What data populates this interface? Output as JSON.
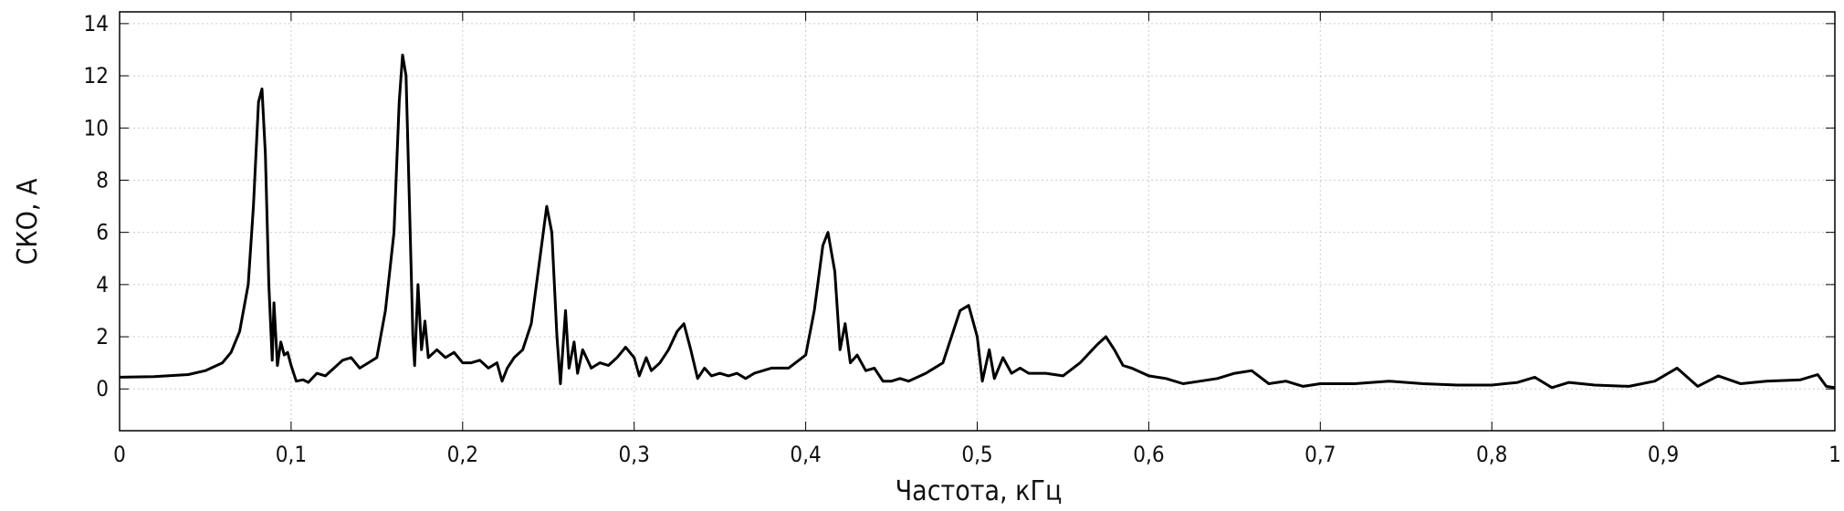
{
  "chart_data": {
    "type": "line",
    "xlabel": "Частота, кГц",
    "ylabel": "СКО, А",
    "xlim": [
      0,
      1
    ],
    "ylim": [
      -1.6,
      14.45
    ],
    "xticks": [
      0,
      {
        "value": 0.1,
        "label": "0,1"
      },
      {
        "value": 0.2,
        "label": "0,2"
      },
      {
        "value": 0.3,
        "label": "0,3"
      },
      {
        "value": 0.4,
        "label": "0,4"
      },
      {
        "value": 0.5,
        "label": "0,5"
      },
      {
        "value": 0.6,
        "label": "0,6"
      },
      {
        "value": 0.7,
        "label": "0,7"
      },
      {
        "value": 0.8,
        "label": "0,8"
      },
      {
        "value": 0.9,
        "label": "0,9"
      },
      1
    ],
    "yticks": [
      0,
      2,
      4,
      6,
      8,
      10,
      12,
      14
    ],
    "grid": true,
    "series": [
      {
        "color": "#000000",
        "x": [
          0,
          0.02,
          0.04,
          0.05,
          0.06,
          0.065,
          0.07,
          0.075,
          0.078,
          0.081,
          0.083,
          0.085,
          0.087,
          0.089,
          0.09,
          0.092,
          0.094,
          0.096,
          0.098,
          0.1,
          0.103,
          0.107,
          0.11,
          0.115,
          0.12,
          0.125,
          0.13,
          0.135,
          0.14,
          0.145,
          0.15,
          0.155,
          0.16,
          0.163,
          0.165,
          0.167,
          0.169,
          0.171,
          0.172,
          0.174,
          0.176,
          0.178,
          0.18,
          0.185,
          0.19,
          0.195,
          0.2,
          0.205,
          0.21,
          0.215,
          0.22,
          0.223,
          0.226,
          0.23,
          0.235,
          0.24,
          0.245,
          0.249,
          0.252,
          0.255,
          0.257,
          0.26,
          0.262,
          0.265,
          0.267,
          0.27,
          0.275,
          0.28,
          0.285,
          0.29,
          0.295,
          0.3,
          0.303,
          0.307,
          0.31,
          0.315,
          0.32,
          0.325,
          0.329,
          0.333,
          0.337,
          0.341,
          0.345,
          0.35,
          0.355,
          0.36,
          0.365,
          0.37,
          0.38,
          0.39,
          0.4,
          0.405,
          0.41,
          0.413,
          0.417,
          0.42,
          0.423,
          0.426,
          0.43,
          0.435,
          0.44,
          0.445,
          0.45,
          0.455,
          0.46,
          0.47,
          0.48,
          0.485,
          0.49,
          0.495,
          0.5,
          0.503,
          0.507,
          0.51,
          0.515,
          0.52,
          0.525,
          0.53,
          0.54,
          0.55,
          0.56,
          0.57,
          0.575,
          0.58,
          0.585,
          0.59,
          0.6,
          0.61,
          0.62,
          0.63,
          0.64,
          0.65,
          0.66,
          0.67,
          0.68,
          0.69,
          0.7,
          0.72,
          0.74,
          0.76,
          0.78,
          0.8,
          0.815,
          0.825,
          0.835,
          0.845,
          0.86,
          0.88,
          0.895,
          0.908,
          0.92,
          0.932,
          0.945,
          0.96,
          0.98,
          0.99,
          0.995,
          1
        ],
        "values": [
          0.45,
          0.47,
          0.55,
          0.7,
          1.0,
          1.4,
          2.2,
          4.0,
          7,
          11.0,
          11.5,
          9,
          4,
          1.1,
          3.3,
          0.9,
          1.8,
          1.3,
          1.4,
          0.9,
          0.3,
          0.35,
          0.25,
          0.6,
          0.5,
          0.8,
          1.1,
          1.2,
          0.8,
          1.0,
          1.2,
          3.0,
          6,
          11,
          12.8,
          12,
          7,
          2,
          0.9,
          4.0,
          1.5,
          2.6,
          1.2,
          1.5,
          1.2,
          1.4,
          1.0,
          1.0,
          1.1,
          0.8,
          1.0,
          0.3,
          0.8,
          1.2,
          1.5,
          2.5,
          5,
          7.0,
          6.0,
          2,
          0.2,
          3.0,
          0.8,
          1.8,
          0.6,
          1.5,
          0.8,
          1.0,
          0.9,
          1.2,
          1.6,
          1.2,
          0.5,
          1.2,
          0.7,
          1.0,
          1.5,
          2.2,
          2.5,
          1.5,
          0.4,
          0.8,
          0.5,
          0.6,
          0.5,
          0.6,
          0.4,
          0.6,
          0.8,
          0.8,
          1.3,
          3,
          5.5,
          6.0,
          4.5,
          1.5,
          2.5,
          1.0,
          1.3,
          0.7,
          0.8,
          0.3,
          0.3,
          0.4,
          0.3,
          0.6,
          1.0,
          2,
          3.0,
          3.2,
          2.0,
          0.3,
          1.5,
          0.4,
          1.2,
          0.6,
          0.8,
          0.6,
          0.6,
          0.5,
          1.0,
          1.7,
          2.0,
          1.5,
          0.9,
          0.8,
          0.5,
          0.4,
          0.2,
          0.3,
          0.4,
          0.6,
          0.7,
          0.2,
          0.3,
          0.1,
          0.2,
          0.2,
          0.3,
          0.2,
          0.15,
          0.15,
          0.25,
          0.45,
          0.05,
          0.25,
          0.15,
          0.1,
          0.3,
          0.8,
          0.1,
          0.5,
          0.2,
          0.3,
          0.35,
          0.55,
          0.1,
          0.05
        ]
      }
    ]
  }
}
